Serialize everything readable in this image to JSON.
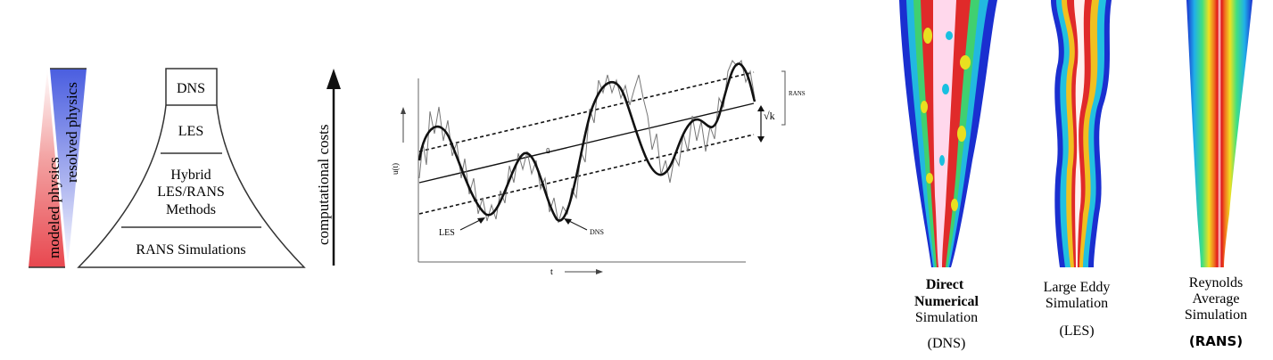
{
  "triangles": {
    "modeled": "modeled physics",
    "resolved": "resolved physics",
    "red": "#e8474f",
    "blue": "#4a5ee0"
  },
  "pyramid": {
    "levels": [
      "DNS",
      "LES",
      "Hybrid",
      "LES/RANS",
      "Methods",
      "RANS Simulations"
    ]
  },
  "cost_label": "computational costs",
  "signal_chart": {
    "ylabel": "u(t)",
    "xlabel": "t",
    "mean_label": "ū",
    "sqrtk_label": "√k",
    "les_label": "LES",
    "dns_label": "DNS",
    "rans_label": "RANS"
  },
  "jets": [
    {
      "lines": [
        "Direct",
        "Numerical",
        "Simulation"
      ],
      "abbr": "(DNS)"
    },
    {
      "lines": [
        "Large Eddy",
        "Simulation"
      ],
      "abbr": "(LES)"
    },
    {
      "lines": [
        "Reynolds",
        "Average",
        "Simulation"
      ],
      "abbr": "(RANS)"
    }
  ]
}
